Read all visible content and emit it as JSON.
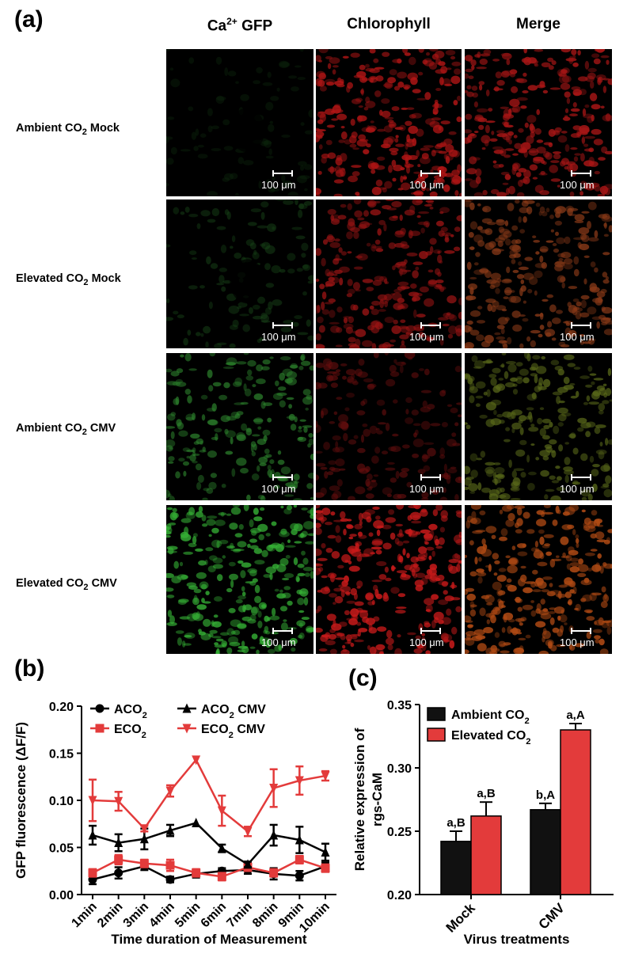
{
  "panel_a": {
    "letter": "(a)",
    "columns": [
      {
        "id": "gfp",
        "prefix": "Ca",
        "sup": "2+",
        "suffix": " GFP"
      },
      {
        "id": "chl",
        "prefix": "Chlorophyll",
        "sup": "",
        "suffix": ""
      },
      {
        "id": "merge",
        "prefix": "Merge",
        "sup": "",
        "suffix": ""
      }
    ],
    "rows": [
      {
        "pre": "Ambient CO",
        "sub": "2",
        "post": " Mock"
      },
      {
        "pre": "Elevated CO",
        "sub": "2",
        "post": " Mock"
      },
      {
        "pre": "Ambient CO",
        "sub": "2",
        "post": " CMV"
      },
      {
        "pre": "Elevated CO",
        "sub": "2",
        "post": " CMV"
      }
    ],
    "scale_label": "100 μm",
    "images": [
      [
        {
          "hex": "#0d2a0d",
          "level": 0.08
        },
        {
          "hex": "#b01515",
          "level": 0.85
        },
        {
          "hex": "#a81616",
          "level": 0.85
        }
      ],
      [
        {
          "hex": "#1a4a1a",
          "level": 0.2
        },
        {
          "hex": "#9a1414",
          "level": 0.75
        },
        {
          "hex": "#8a3a18",
          "level": 0.75
        }
      ],
      [
        {
          "hex": "#2f8a2f",
          "level": 0.55
        },
        {
          "hex": "#6a0f0f",
          "level": 0.45
        },
        {
          "hex": "#5a6a1a",
          "level": 0.65
        }
      ],
      [
        {
          "hex": "#35b035",
          "level": 0.8
        },
        {
          "hex": "#c81a1a",
          "level": 0.9
        },
        {
          "hex": "#b04a14",
          "level": 0.9
        }
      ]
    ]
  },
  "panel_b": {
    "letter": "(b)",
    "chart_data": {
      "type": "line",
      "xlabel": "Time duration of Measurement",
      "ylabel": "GFP fluorescence (ΔF/F)",
      "categories": [
        "1min",
        "2min",
        "3min",
        "4min",
        "5min",
        "6min",
        "7min",
        "8min",
        "9min",
        "10min"
      ],
      "ylim": [
        0,
        0.2
      ],
      "yticks": [
        "0.00",
        "0.05",
        "0.10",
        "0.15",
        "0.20"
      ],
      "series": [
        {
          "name_pre": "ACO",
          "name_sub": "2",
          "name_post": "",
          "color": "#000000",
          "marker": "circle",
          "values": [
            0.016,
            0.023,
            0.03,
            0.016,
            0.022,
            0.025,
            0.026,
            0.022,
            0.02,
            0.03
          ],
          "errors": [
            0.005,
            0.006,
            0.004,
            0.003,
            0.004,
            0.003,
            0.004,
            0.006,
            0.005,
            0.004
          ]
        },
        {
          "name_pre": "ECO",
          "name_sub": "2",
          "name_post": "",
          "color": "#e33b3b",
          "marker": "square",
          "values": [
            0.023,
            0.037,
            0.033,
            0.031,
            0.023,
            0.019,
            0.029,
            0.023,
            0.037,
            0.028
          ],
          "errors": [
            0.004,
            0.005,
            0.004,
            0.006,
            0.004,
            0.004,
            0.004,
            0.004,
            0.004,
            0.004
          ]
        },
        {
          "name_pre": "ACO",
          "name_sub": "2",
          "name_post": " CMV",
          "color": "#000000",
          "marker": "triangle",
          "values": [
            0.063,
            0.055,
            0.059,
            0.068,
            0.076,
            0.049,
            0.032,
            0.063,
            0.058,
            0.045
          ],
          "errors": [
            0.01,
            0.009,
            0.011,
            0.006,
            0.0,
            0.004,
            0.003,
            0.011,
            0.014,
            0.009
          ]
        },
        {
          "name_pre": "ECO",
          "name_sub": "2",
          "name_post": " CMV",
          "color": "#e33b3b",
          "marker": "triangle-down",
          "values": [
            0.1,
            0.099,
            0.07,
            0.11,
            0.143,
            0.089,
            0.067,
            0.113,
            0.121,
            0.126
          ],
          "errors": [
            0.022,
            0.01,
            0.003,
            0.006,
            0.0,
            0.016,
            0.005,
            0.02,
            0.015,
            0.005
          ]
        }
      ]
    }
  },
  "panel_c": {
    "letter": "(c)",
    "chart_data": {
      "type": "bar",
      "xlabel": "Virus treatments",
      "ylabel_line1": "Relative expression of",
      "ylabel_line2": "rgs-CaM",
      "categories": [
        "Mock",
        "CMV"
      ],
      "ylim": [
        0.2,
        0.35
      ],
      "yticks": [
        "0.20",
        "0.25",
        "0.30",
        "0.35"
      ],
      "series": [
        {
          "name_pre": "Ambient CO",
          "name_sub": "2",
          "color": "#111111",
          "values": [
            0.242,
            0.267
          ],
          "errors": [
            0.008,
            0.005
          ],
          "labels": [
            "a,B",
            "b,A"
          ]
        },
        {
          "name_pre": "Elevated CO",
          "name_sub": "2",
          "color": "#e33b3b",
          "values": [
            0.262,
            0.33
          ],
          "errors": [
            0.011,
            0.005
          ],
          "labels": [
            "a,B",
            "a,A"
          ]
        }
      ]
    }
  }
}
